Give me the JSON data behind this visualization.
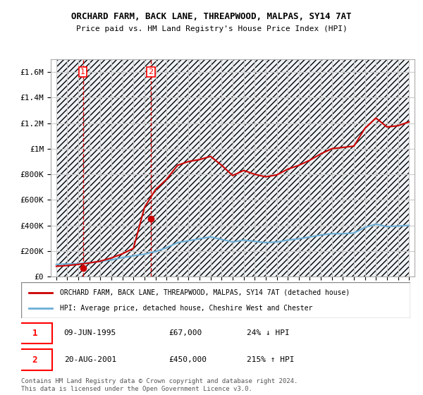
{
  "title": "ORCHARD FARM, BACK LANE, THREAPWOOD, MALPAS, SY14 7AT",
  "subtitle": "Price paid vs. HM Land Registry's House Price Index (HPI)",
  "legend_line1": "ORCHARD FARM, BACK LANE, THREAPWOOD, MALPAS, SY14 7AT (detached house)",
  "legend_line2": "HPI: Average price, detached house, Cheshire West and Chester",
  "footer1": "Contains HM Land Registry data © Crown copyright and database right 2024.",
  "footer2": "This data is licensed under the Open Government Licence v3.0.",
  "transaction1": {
    "label": "1",
    "date": "09-JUN-1995",
    "price": 67000,
    "hpi_pct": "24% ↓ HPI"
  },
  "transaction2": {
    "label": "2",
    "date": "20-AUG-2001",
    "price": 450000,
    "hpi_pct": "215% ↑ HPI"
  },
  "ylim": [
    0,
    1700000
  ],
  "yticks": [
    0,
    200000,
    400000,
    600000,
    800000,
    1000000,
    1200000,
    1400000,
    1600000
  ],
  "ytick_labels": [
    "£0",
    "£200K",
    "£400K",
    "£600K",
    "£800K",
    "£1M",
    "£1.2M",
    "£1.4M",
    "£1.6M"
  ],
  "hpi_color": "#6baed6",
  "price_color": "#cc0000",
  "grid_color": "#cccccc",
  "hatch_color": "#d0d8e8",
  "transaction_color": "#cc0000",
  "marker_color": "#cc0000",
  "dashed_line_color": "#cc0000",
  "background_color": "#ffffff",
  "x_start_year": 1993,
  "x_end_year": 2025,
  "hpi_data": {
    "years": [
      1993,
      1994,
      1995,
      1996,
      1997,
      1998,
      1999,
      2000,
      2001,
      2002,
      2003,
      2004,
      2005,
      2006,
      2007,
      2008,
      2009,
      2010,
      2011,
      2012,
      2013,
      2014,
      2015,
      2016,
      2017,
      2018,
      2019,
      2020,
      2021,
      2022,
      2023,
      2024,
      2025
    ],
    "values": [
      95000,
      98000,
      100000,
      108000,
      118000,
      130000,
      148000,
      162000,
      175000,
      195000,
      225000,
      265000,
      280000,
      295000,
      310000,
      290000,
      270000,
      285000,
      275000,
      265000,
      270000,
      285000,
      295000,
      310000,
      325000,
      335000,
      335000,
      340000,
      385000,
      410000,
      390000,
      395000,
      400000
    ]
  },
  "price_data": {
    "years": [
      1993,
      1994,
      1995,
      1996,
      1997,
      1998,
      1999,
      2000,
      2001,
      2002,
      2003,
      2004,
      2005,
      2006,
      2007,
      2008,
      2009,
      2010,
      2011,
      2012,
      2013,
      2014,
      2015,
      2016,
      2017,
      2018,
      2019,
      2020,
      2021,
      2022,
      2023,
      2024,
      2025
    ],
    "values": [
      80000,
      86000,
      95000,
      106000,
      120000,
      145000,
      178000,
      220000,
      540000,
      680000,
      760000,
      870000,
      900000,
      915000,
      940000,
      870000,
      790000,
      830000,
      800000,
      780000,
      795000,
      840000,
      870000,
      910000,
      960000,
      1000000,
      1010000,
      1020000,
      1160000,
      1240000,
      1170000,
      1180000,
      1210000
    ]
  }
}
